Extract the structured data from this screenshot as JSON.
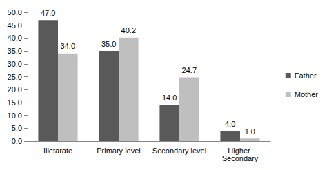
{
  "chart_data": {
    "type": "bar",
    "categories": [
      "Illetarate",
      "Primary level",
      "Secondary level",
      "Higher Secondary"
    ],
    "series": [
      {
        "name": "Father",
        "color": "#595959",
        "values": [
          47.0,
          35.0,
          14.0,
          4.0
        ],
        "value_labels": [
          "47.0",
          "35.0",
          "14.0",
          "4.0"
        ]
      },
      {
        "name": "Mother",
        "color": "#bfbfbf",
        "values": [
          34.0,
          40.2,
          24.7,
          1.0
        ],
        "value_labels": [
          "34.0",
          "40.2",
          "24.7",
          "1.0"
        ]
      }
    ],
    "ylim": [
      0,
      50
    ],
    "yticks": [
      {
        "value": 0,
        "label": "0.0"
      },
      {
        "value": 5,
        "label": "5.0"
      },
      {
        "value": 10,
        "label": "10.0"
      },
      {
        "value": 15,
        "label": "15.0"
      },
      {
        "value": 20,
        "label": "20.0"
      },
      {
        "value": 25,
        "label": "25.0"
      },
      {
        "value": 30,
        "label": "30.0"
      },
      {
        "value": 35,
        "label": "35.0"
      },
      {
        "value": 40,
        "label": "40.0"
      },
      {
        "value": 45,
        "label": "45.0"
      },
      {
        "value": 50,
        "label": "50.0"
      }
    ],
    "grid": false,
    "legend": "right",
    "data_labels": true
  }
}
